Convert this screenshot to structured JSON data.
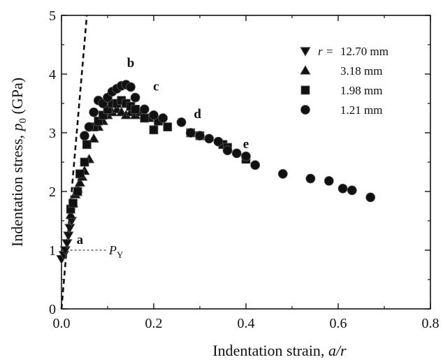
{
  "chart_data": {
    "type": "scatter",
    "xlabel": "Indentation strain, a/r",
    "ylabel": "Indentation stress, p0 (GPa)",
    "xlim": [
      0.0,
      0.8
    ],
    "ylim": [
      0,
      5
    ],
    "x_ticks": [
      "0.0",
      "0.2",
      "0.4",
      "0.6",
      "0.8"
    ],
    "y_ticks": [
      "0",
      "1",
      "2",
      "3",
      "4",
      "5"
    ],
    "grid": false,
    "legend_position": "top-right",
    "legend": {
      "prefix": "r =",
      "labels": [
        "12.70 mm",
        "3.18 mm",
        "1.98 mm",
        "1.21 mm"
      ]
    },
    "annotations": [
      {
        "text": "a",
        "x": 0.04,
        "y": 1.11
      },
      {
        "text": "b",
        "x": 0.15,
        "y": 4.12
      },
      {
        "text": "c",
        "x": 0.205,
        "y": 3.72
      },
      {
        "text": "d",
        "x": 0.295,
        "y": 3.25
      },
      {
        "text": "e",
        "x": 0.4,
        "y": 2.74
      }
    ],
    "py_label": {
      "text": "P",
      "subscript": "Y",
      "y": 1.0
    },
    "elastic_line": {
      "x": [
        0.0,
        0.055
      ],
      "y": [
        0.0,
        5.0
      ]
    },
    "series": [
      {
        "name": "12.70 mm",
        "marker": "triangle-down",
        "x": [
          0.0,
          0.005,
          0.008,
          0.012,
          0.015,
          0.018,
          0.022
        ],
        "y": [
          0.85,
          0.92,
          1.0,
          1.12,
          1.25,
          1.38,
          1.5
        ]
      },
      {
        "name": "3.18 mm",
        "marker": "triangle-up",
        "x": [
          0.02,
          0.025,
          0.03,
          0.035,
          0.04,
          0.045,
          0.05,
          0.06,
          0.07,
          0.08,
          0.09,
          0.1,
          0.11,
          0.12,
          0.13,
          0.14,
          0.15,
          0.16,
          0.17,
          0.18,
          0.19
        ],
        "y": [
          1.6,
          1.8,
          1.95,
          2.05,
          2.15,
          2.25,
          2.35,
          2.55,
          2.9,
          3.1,
          3.2,
          3.3,
          3.35,
          3.4,
          3.35,
          3.3,
          3.35,
          3.3,
          3.35,
          3.3,
          3.25
        ]
      },
      {
        "name": "1.98 mm",
        "marker": "square",
        "x": [
          0.02,
          0.025,
          0.035,
          0.04,
          0.05,
          0.055,
          0.07,
          0.08,
          0.09,
          0.1,
          0.11,
          0.12,
          0.13,
          0.14,
          0.15,
          0.16,
          0.18,
          0.2,
          0.21,
          0.23,
          0.28,
          0.3,
          0.35,
          0.36,
          0.4
        ],
        "y": [
          1.7,
          1.8,
          2.0,
          2.3,
          2.5,
          2.8,
          3.1,
          3.2,
          3.3,
          3.4,
          3.5,
          3.5,
          3.55,
          3.5,
          3.45,
          3.4,
          3.25,
          3.05,
          3.2,
          3.1,
          3.0,
          2.95,
          2.8,
          2.75,
          2.55
        ]
      },
      {
        "name": "1.21 mm",
        "marker": "circle",
        "x": [
          0.05,
          0.06,
          0.07,
          0.08,
          0.09,
          0.1,
          0.11,
          0.12,
          0.13,
          0.14,
          0.15,
          0.16,
          0.18,
          0.2,
          0.22,
          0.26,
          0.28,
          0.3,
          0.32,
          0.34,
          0.36,
          0.38,
          0.4,
          0.42,
          0.48,
          0.54,
          0.58,
          0.61,
          0.63,
          0.67
        ],
        "y": [
          2.95,
          3.1,
          3.35,
          3.55,
          3.5,
          3.6,
          3.7,
          3.75,
          3.8,
          3.82,
          3.78,
          3.6,
          3.4,
          3.3,
          3.25,
          3.18,
          3.0,
          2.95,
          2.9,
          2.85,
          2.7,
          2.65,
          2.6,
          2.45,
          2.3,
          2.22,
          2.18,
          2.05,
          2.02,
          1.9
        ]
      }
    ]
  }
}
